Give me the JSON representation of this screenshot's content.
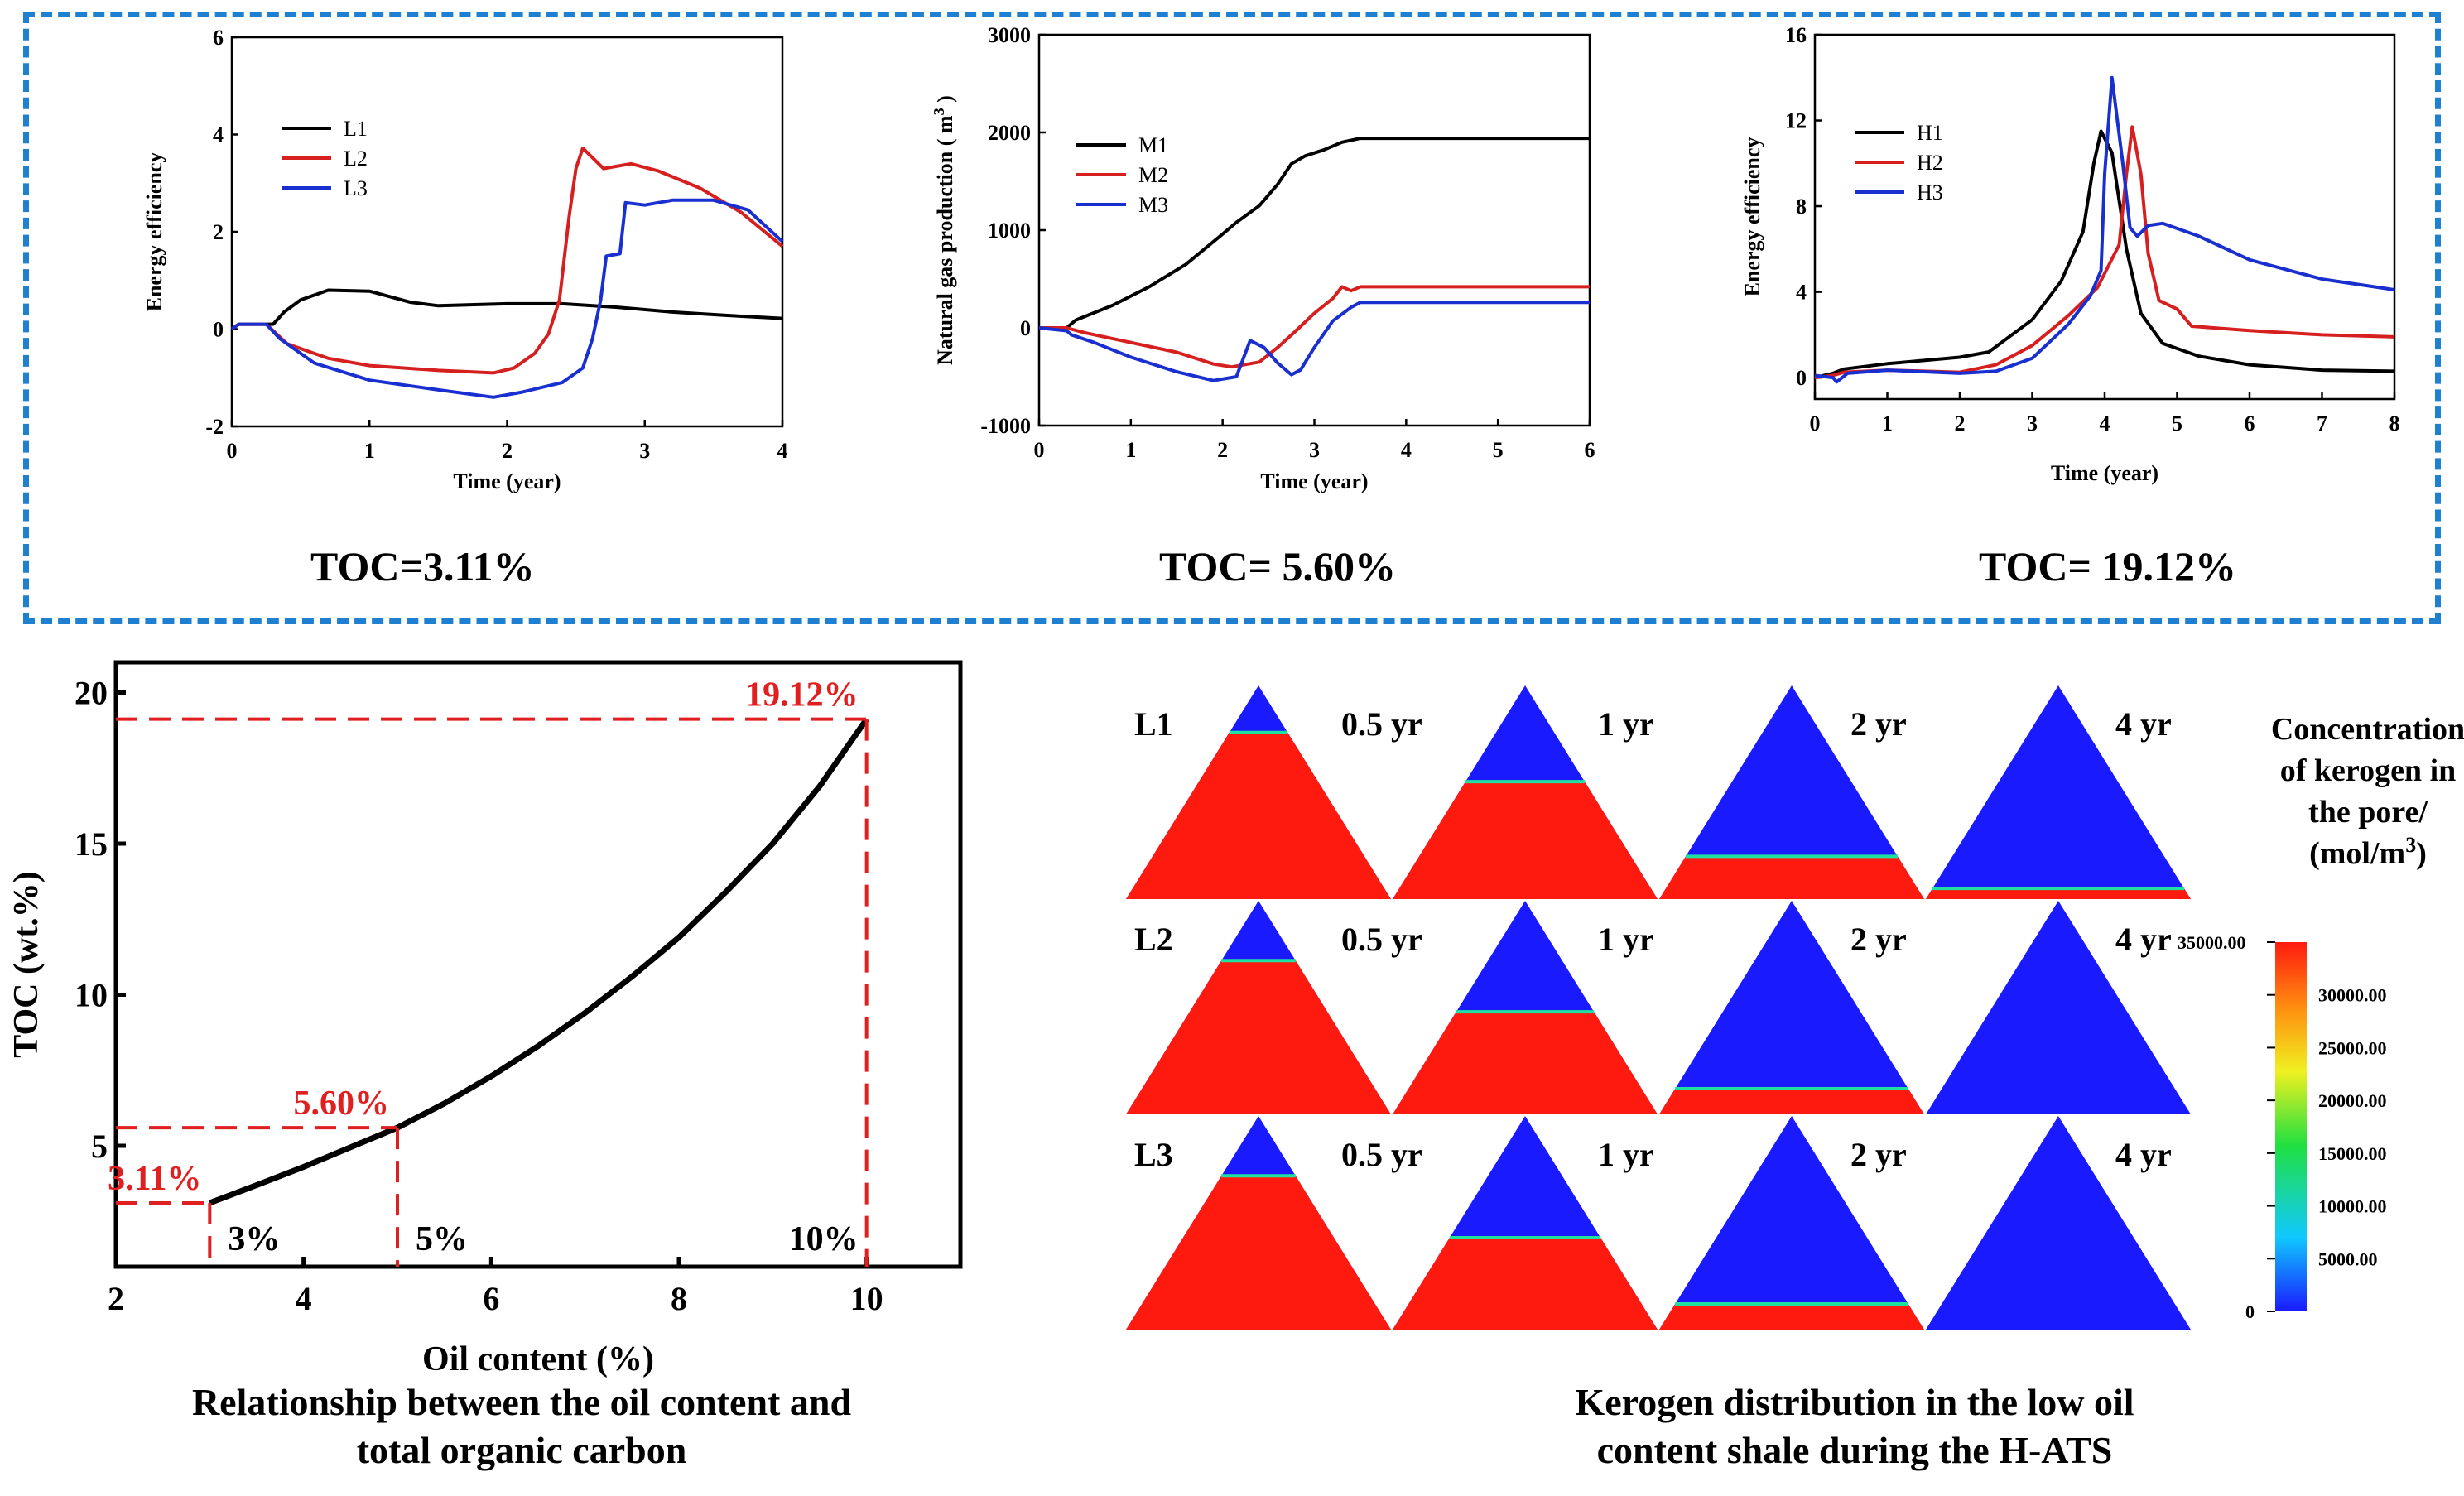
{
  "top_panels": {
    "toc_low": "TOC=3.11%",
    "toc_mid": "TOC= 5.60%",
    "toc_high": "TOC= 19.12%"
  },
  "bottom_left": {
    "caption_line1": "Relationship between the oil content and",
    "caption_line2": "total organic carbon"
  },
  "bottom_right": {
    "caption_line1": "Kerogen distribution in the low oil",
    "caption_line2": "content shale during the H-ATS",
    "colorbar_title_1": "Concentration",
    "colorbar_title_2": "of kerogen in",
    "colorbar_title_3": "the pore/",
    "colorbar_title_4": "(mol/m",
    "colorbar_title_sup": "3",
    "colorbar_title_end": ")",
    "colorbar_ticks": [
      "35000.00",
      "30000.00",
      "25000.00",
      "20000.00",
      "15000.00",
      "10000.00",
      "5000.00",
      "0"
    ],
    "rows": [
      {
        "label": "L1",
        "times": [
          "0.5 yr",
          "1 yr",
          "2 yr",
          "4 yr"
        ]
      },
      {
        "label": "L2",
        "times": [
          "0.5 yr",
          "1 yr",
          "2 yr",
          "4 yr"
        ]
      },
      {
        "label": "L3",
        "times": [
          "0.5 yr",
          "1 yr",
          "2 yr",
          "4 yr"
        ]
      }
    ],
    "kerogen_remaining_fraction": [
      [
        0.78,
        0.55,
        0.2,
        0.05
      ],
      [
        0.72,
        0.48,
        0.12,
        0.0
      ],
      [
        0.72,
        0.43,
        0.12,
        0.0
      ]
    ],
    "colors": {
      "high": "#ff1a10",
      "low": "#1a1aff"
    }
  },
  "chart_data": [
    {
      "id": "energy-low",
      "type": "line",
      "title": "",
      "xlabel": "Time (year)",
      "ylabel": "Energy efficiency",
      "xlim": [
        0,
        4
      ],
      "ylim": [
        -2,
        6
      ],
      "xticks": [
        0,
        1,
        2,
        3,
        4
      ],
      "yticks": [
        -2,
        0,
        2,
        4,
        6
      ],
      "xtick_labels": [
        "0",
        "1",
        "2",
        "3",
        "4"
      ],
      "ytick_labels": [
        "-2",
        "0",
        "2",
        "4",
        "6"
      ],
      "series": [
        {
          "name": "L1",
          "color": "#000000",
          "points": [
            [
              0,
              0
            ],
            [
              0.05,
              0.1
            ],
            [
              0.3,
              0.1
            ],
            [
              0.38,
              0.35
            ],
            [
              0.5,
              0.6
            ],
            [
              0.7,
              0.8
            ],
            [
              1,
              0.78
            ],
            [
              1.3,
              0.55
            ],
            [
              1.5,
              0.48
            ],
            [
              2,
              0.52
            ],
            [
              2.4,
              0.52
            ],
            [
              2.8,
              0.45
            ],
            [
              3.2,
              0.35
            ],
            [
              3.6,
              0.28
            ],
            [
              4,
              0.22
            ]
          ]
        },
        {
          "name": "L2",
          "color": "#d62020",
          "points": [
            [
              0,
              0
            ],
            [
              0.05,
              0.1
            ],
            [
              0.25,
              0.1
            ],
            [
              0.4,
              -0.3
            ],
            [
              0.7,
              -0.6
            ],
            [
              1,
              -0.75
            ],
            [
              1.5,
              -0.85
            ],
            [
              1.9,
              -0.9
            ],
            [
              2.05,
              -0.8
            ],
            [
              2.2,
              -0.5
            ],
            [
              2.3,
              -0.1
            ],
            [
              2.38,
              0.6
            ],
            [
              2.45,
              2.3
            ],
            [
              2.5,
              3.3
            ],
            [
              2.55,
              3.72
            ],
            [
              2.7,
              3.3
            ],
            [
              2.9,
              3.4
            ],
            [
              3.1,
              3.25
            ],
            [
              3.4,
              2.9
            ],
            [
              3.7,
              2.4
            ],
            [
              4,
              1.7
            ]
          ]
        },
        {
          "name": "L3",
          "color": "#1a2fd0",
          "points": [
            [
              0,
              0
            ],
            [
              0.05,
              0.1
            ],
            [
              0.25,
              0.1
            ],
            [
              0.35,
              -0.2
            ],
            [
              0.6,
              -0.7
            ],
            [
              1,
              -1.05
            ],
            [
              1.5,
              -1.25
            ],
            [
              1.9,
              -1.4
            ],
            [
              2.1,
              -1.3
            ],
            [
              2.4,
              -1.1
            ],
            [
              2.55,
              -0.8
            ],
            [
              2.62,
              -0.2
            ],
            [
              2.68,
              0.6
            ],
            [
              2.72,
              1.5
            ],
            [
              2.82,
              1.55
            ],
            [
              2.86,
              2.6
            ],
            [
              3.0,
              2.55
            ],
            [
              3.2,
              2.65
            ],
            [
              3.5,
              2.65
            ],
            [
              3.75,
              2.45
            ],
            [
              4,
              1.8
            ]
          ]
        }
      ]
    },
    {
      "id": "gas-production",
      "type": "line",
      "title": "",
      "xlabel": "Time (year)",
      "ylabel": "Natural gas production ( m",
      "ylabel_sup": "3",
      "ylabel_end": " )",
      "xlim": [
        0,
        6
      ],
      "ylim": [
        -1000,
        3000
      ],
      "xticks": [
        0,
        1,
        2,
        3,
        4,
        5,
        6
      ],
      "yticks": [
        -1000,
        0,
        1000,
        2000,
        3000
      ],
      "xtick_labels": [
        "0",
        "1",
        "2",
        "3",
        "4",
        "5",
        "6"
      ],
      "ytick_labels": [
        "-1000",
        "0",
        "1000",
        "2000",
        "3000"
      ],
      "series": [
        {
          "name": "M1",
          "color": "#000000",
          "points": [
            [
              0,
              0
            ],
            [
              0.3,
              0
            ],
            [
              0.4,
              80
            ],
            [
              0.8,
              230
            ],
            [
              1.2,
              420
            ],
            [
              1.6,
              650
            ],
            [
              2.0,
              960
            ],
            [
              2.15,
              1080
            ],
            [
              2.4,
              1250
            ],
            [
              2.6,
              1470
            ],
            [
              2.75,
              1680
            ],
            [
              2.9,
              1760
            ],
            [
              3.1,
              1820
            ],
            [
              3.3,
              1900
            ],
            [
              3.5,
              1940
            ],
            [
              4,
              1940
            ],
            [
              6,
              1940
            ]
          ]
        },
        {
          "name": "M2",
          "color": "#d62020",
          "points": [
            [
              0,
              0
            ],
            [
              0.3,
              0
            ],
            [
              0.5,
              -50
            ],
            [
              1.0,
              -150
            ],
            [
              1.5,
              -250
            ],
            [
              1.9,
              -370
            ],
            [
              2.1,
              -400
            ],
            [
              2.4,
              -350
            ],
            [
              2.6,
              -200
            ],
            [
              2.8,
              -30
            ],
            [
              3.0,
              150
            ],
            [
              3.2,
              300
            ],
            [
              3.3,
              420
            ],
            [
              3.4,
              380
            ],
            [
              3.5,
              420
            ],
            [
              6,
              420
            ]
          ]
        },
        {
          "name": "M3",
          "color": "#1a2fd0",
          "points": [
            [
              0,
              0
            ],
            [
              0.3,
              -30
            ],
            [
              0.35,
              -70
            ],
            [
              0.6,
              -150
            ],
            [
              1.0,
              -300
            ],
            [
              1.5,
              -450
            ],
            [
              1.9,
              -540
            ],
            [
              2.15,
              -500
            ],
            [
              2.3,
              -130
            ],
            [
              2.45,
              -200
            ],
            [
              2.6,
              -360
            ],
            [
              2.75,
              -480
            ],
            [
              2.85,
              -430
            ],
            [
              3.0,
              -200
            ],
            [
              3.2,
              70
            ],
            [
              3.4,
              210
            ],
            [
              3.5,
              260
            ],
            [
              6,
              260
            ]
          ]
        }
      ]
    },
    {
      "id": "energy-high",
      "type": "line",
      "title": "",
      "xlabel": "Time (year)",
      "ylabel": "Energy efficiency",
      "xlim": [
        0,
        8
      ],
      "ylim": [
        -1,
        16
      ],
      "xticks": [
        0,
        1,
        2,
        3,
        4,
        5,
        6,
        7,
        8
      ],
      "yticks": [
        0,
        4,
        8,
        12,
        16
      ],
      "xtick_labels": [
        "0",
        "1",
        "2",
        "3",
        "4",
        "5",
        "6",
        "7",
        "8"
      ],
      "ytick_labels": [
        "0",
        "4",
        "8",
        "12",
        "16"
      ],
      "series": [
        {
          "name": "H1",
          "color": "#000000",
          "points": [
            [
              0,
              0
            ],
            [
              0.25,
              0.2
            ],
            [
              0.4,
              0.4
            ],
            [
              1,
              0.65
            ],
            [
              2,
              0.95
            ],
            [
              2.4,
              1.2
            ],
            [
              3,
              2.7
            ],
            [
              3.4,
              4.5
            ],
            [
              3.7,
              6.8
            ],
            [
              3.85,
              10.0
            ],
            [
              3.95,
              11.5
            ],
            [
              4.1,
              10.5
            ],
            [
              4.3,
              6
            ],
            [
              4.5,
              3
            ],
            [
              4.8,
              1.6
            ],
            [
              5.3,
              1.0
            ],
            [
              6,
              0.6
            ],
            [
              7,
              0.35
            ],
            [
              8,
              0.3
            ]
          ]
        },
        {
          "name": "H2",
          "color": "#d62020",
          "points": [
            [
              0,
              0
            ],
            [
              0.25,
              0.1
            ],
            [
              0.4,
              0.25
            ],
            [
              1,
              0.35
            ],
            [
              2,
              0.25
            ],
            [
              2.5,
              0.6
            ],
            [
              3,
              1.5
            ],
            [
              3.5,
              2.9
            ],
            [
              3.9,
              4.2
            ],
            [
              4.2,
              6.2
            ],
            [
              4.3,
              9.5
            ],
            [
              4.38,
              11.7
            ],
            [
              4.5,
              9.5
            ],
            [
              4.6,
              5.8
            ],
            [
              4.75,
              3.6
            ],
            [
              5.0,
              3.2
            ],
            [
              5.2,
              2.4
            ],
            [
              6,
              2.2
            ],
            [
              7,
              2.0
            ],
            [
              8,
              1.9
            ]
          ]
        },
        {
          "name": "H3",
          "color": "#1a2fd0",
          "points": [
            [
              0,
              0.1
            ],
            [
              0.25,
              0
            ],
            [
              0.3,
              -0.2
            ],
            [
              0.45,
              0.2
            ],
            [
              1,
              0.35
            ],
            [
              2,
              0.2
            ],
            [
              2.5,
              0.3
            ],
            [
              3,
              0.9
            ],
            [
              3.5,
              2.5
            ],
            [
              3.8,
              3.8
            ],
            [
              3.95,
              5
            ],
            [
              4.0,
              9.5
            ],
            [
              4.1,
              14
            ],
            [
              4.25,
              10
            ],
            [
              4.35,
              7
            ],
            [
              4.45,
              6.6
            ],
            [
              4.6,
              7.1
            ],
            [
              4.8,
              7.2
            ],
            [
              5.3,
              6.6
            ],
            [
              6,
              5.5
            ],
            [
              7,
              4.6
            ],
            [
              8,
              4.1
            ]
          ]
        }
      ]
    },
    {
      "id": "toc-vs-oil",
      "type": "line",
      "title": "",
      "xlabel": "Oil content (%)",
      "ylabel": "TOC (wt.%)",
      "xlim": [
        2,
        11
      ],
      "ylim": [
        1,
        21
      ],
      "xticks": [
        2,
        4,
        6,
        8,
        10
      ],
      "yticks": [
        5,
        10,
        15,
        20
      ],
      "xtick_labels": [
        "2",
        "4",
        "6",
        "8",
        "10"
      ],
      "ytick_labels": [
        "5",
        "10",
        "15",
        "20"
      ],
      "series": [
        {
          "name": "TOC",
          "color": "#000000",
          "points": [
            [
              3,
              3.11
            ],
            [
              3.5,
              3.7
            ],
            [
              4,
              4.3
            ],
            [
              4.5,
              4.95
            ],
            [
              5,
              5.6
            ],
            [
              5.5,
              6.4
            ],
            [
              6,
              7.3
            ],
            [
              6.5,
              8.3
            ],
            [
              7,
              9.4
            ],
            [
              7.5,
              10.6
            ],
            [
              8,
              11.9
            ],
            [
              8.5,
              13.4
            ],
            [
              9,
              15.0
            ],
            [
              9.5,
              16.9
            ],
            [
              10,
              19.12
            ]
          ]
        }
      ],
      "annotations": [
        {
          "x": 3,
          "y": 3.11,
          "value_label": "3.11%",
          "x_label": "3%"
        },
        {
          "x": 5,
          "y": 5.6,
          "value_label": "5.60%",
          "x_label": "5%"
        },
        {
          "x": 10,
          "y": 19.12,
          "value_label": "19.12%",
          "x_label": "10%"
        }
      ]
    }
  ]
}
